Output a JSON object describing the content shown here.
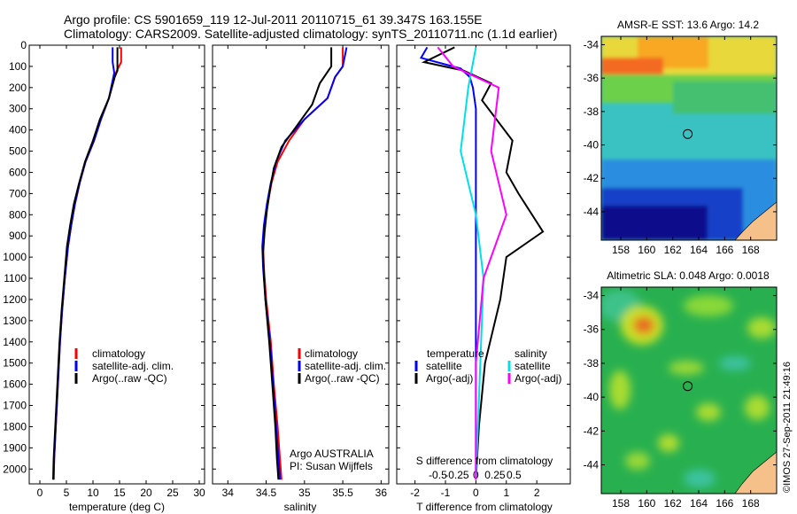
{
  "header": {
    "line1": "Argo profile: CS 5901659_119 12-Jul-2011 20110715_61 39.347S 163.155E",
    "line2": "Climatology: CARS2009. Satellite-adjusted climatology: synTS_20110711.nc (1.1d earlier)"
  },
  "colors": {
    "climatology": "#ff0000",
    "satellite": "#0000ff",
    "argo": "#000000",
    "sal_satellite": "#00e0e8",
    "sal_argo": "#ff00ff",
    "land": "#f5c08a"
  },
  "depth_ticks": [
    "0",
    "100",
    "200",
    "300",
    "400",
    "500",
    "600",
    "700",
    "800",
    "900",
    "1000",
    "1100",
    "1200",
    "1300",
    "1400",
    "1500",
    "1600",
    "1700",
    "1800",
    "1900",
    "2000"
  ],
  "chart_data": [
    {
      "type": "line",
      "xlabel": "temperature (deg C)",
      "xlim": [
        -2,
        31
      ],
      "ylim": [
        2070,
        0
      ],
      "xticks": [
        0,
        5,
        10,
        15,
        20,
        25,
        30
      ],
      "legend": [
        "climatology",
        "satellite-adj. clim.",
        "Argo(..raw -QC)"
      ],
      "legend_colors": [
        "#ff0000",
        "#0000ff",
        "#000000"
      ],
      "series": [
        {
          "name": "climatology",
          "color": "#ff0000",
          "points": [
            [
              15.3,
              10
            ],
            [
              15.3,
              80
            ],
            [
              14.5,
              120
            ],
            [
              14,
              150
            ],
            [
              13,
              250
            ],
            [
              11.5,
              350
            ],
            [
              10.2,
              450
            ],
            [
              8.6,
              550
            ],
            [
              7.5,
              650
            ],
            [
              6.6,
              750
            ],
            [
              5.9,
              850
            ],
            [
              5.3,
              950
            ],
            [
              4.7,
              1100
            ],
            [
              4.2,
              1250
            ],
            [
              3.8,
              1400
            ],
            [
              3.4,
              1600
            ],
            [
              3.0,
              1800
            ],
            [
              2.7,
              1950
            ],
            [
              2.6,
              2050
            ]
          ]
        },
        {
          "name": "satellite-adj. clim.",
          "color": "#0000ff",
          "points": [
            [
              13.7,
              10
            ],
            [
              13.7,
              80
            ],
            [
              14,
              130
            ],
            [
              13,
              250
            ],
            [
              11.5,
              350
            ],
            [
              10.2,
              450
            ],
            [
              8.6,
              550
            ],
            [
              7.5,
              650
            ],
            [
              6.6,
              750
            ],
            [
              5.9,
              850
            ],
            [
              5.3,
              950
            ],
            [
              4.7,
              1100
            ],
            [
              4.2,
              1250
            ],
            [
              3.8,
              1400
            ],
            [
              3.4,
              1600
            ],
            [
              3.0,
              1800
            ],
            [
              2.7,
              1950
            ],
            [
              2.6,
              2050
            ]
          ]
        },
        {
          "name": "Argo(..raw -QC)",
          "color": "#000000",
          "points": [
            [
              14.6,
              10
            ],
            [
              14.6,
              120
            ],
            [
              14.1,
              150
            ],
            [
              13,
              250
            ],
            [
              11.3,
              350
            ],
            [
              10,
              450
            ],
            [
              8.5,
              550
            ],
            [
              7.4,
              650
            ],
            [
              6.4,
              750
            ],
            [
              5.7,
              850
            ],
            [
              5.1,
              950
            ],
            [
              4.6,
              1100
            ],
            [
              4.1,
              1250
            ],
            [
              3.7,
              1400
            ],
            [
              3.3,
              1600
            ],
            [
              2.9,
              1800
            ],
            [
              2.6,
              1950
            ],
            [
              2.5,
              2050
            ]
          ]
        }
      ]
    },
    {
      "type": "line",
      "xlabel": "salinity",
      "xlim": [
        33.8,
        36.1
      ],
      "ylim": [
        2070,
        0
      ],
      "xticks": [
        34,
        34.5,
        35,
        35.5,
        36
      ],
      "xticklabels": [
        "34",
        "34.5",
        "35",
        "35.5",
        "36"
      ],
      "legend": [
        "climatology",
        "satellite-adj. clim.",
        "Argo(..raw -QC)"
      ],
      "legend_colors": [
        "#ff0000",
        "#0000ff",
        "#000000"
      ],
      "annotation": [
        "Argo AUSTRALIA",
        "PI: Susan Wijffels"
      ],
      "series": [
        {
          "name": "climatology",
          "color": "#ff0000",
          "points": [
            [
              35.5,
              10
            ],
            [
              35.5,
              100
            ],
            [
              35.4,
              150
            ],
            [
              35.3,
              250
            ],
            [
              35.0,
              350
            ],
            [
              34.8,
              450
            ],
            [
              34.65,
              550
            ],
            [
              34.57,
              650
            ],
            [
              34.52,
              750
            ],
            [
              34.48,
              850
            ],
            [
              34.46,
              950
            ],
            [
              34.47,
              1050
            ],
            [
              34.5,
              1200
            ],
            [
              34.56,
              1400
            ],
            [
              34.6,
              1600
            ],
            [
              34.65,
              1800
            ],
            [
              34.68,
              1950
            ],
            [
              34.7,
              2050
            ]
          ]
        },
        {
          "name": "satellite-adj. clim.",
          "color": "#0000ff",
          "points": [
            [
              35.55,
              10
            ],
            [
              35.5,
              100
            ],
            [
              35.4,
              150
            ],
            [
              35.3,
              250
            ],
            [
              35.0,
              350
            ],
            [
              34.75,
              450
            ],
            [
              34.63,
              550
            ],
            [
              34.56,
              650
            ],
            [
              34.51,
              750
            ],
            [
              34.47,
              850
            ],
            [
              34.45,
              950
            ],
            [
              34.46,
              1050
            ],
            [
              34.49,
              1200
            ],
            [
              34.55,
              1400
            ],
            [
              34.59,
              1600
            ],
            [
              34.63,
              1800
            ],
            [
              34.66,
              1950
            ],
            [
              34.68,
              2050
            ]
          ]
        },
        {
          "name": "Argo(..raw -QC)",
          "color": "#000000",
          "points": [
            [
              35.35,
              10
            ],
            [
              35.35,
              100
            ],
            [
              35.2,
              180
            ],
            [
              35.1,
              280
            ],
            [
              34.9,
              380
            ],
            [
              34.7,
              480
            ],
            [
              34.6,
              580
            ],
            [
              34.55,
              680
            ],
            [
              34.51,
              780
            ],
            [
              34.48,
              880
            ],
            [
              34.46,
              980
            ],
            [
              34.47,
              1080
            ],
            [
              34.49,
              1200
            ],
            [
              34.54,
              1400
            ],
            [
              34.58,
              1600
            ],
            [
              34.62,
              1800
            ],
            [
              34.64,
              1950
            ],
            [
              34.66,
              2050
            ]
          ]
        }
      ]
    },
    {
      "type": "line",
      "xlabel": "T difference from climatology",
      "xlabel2": "S difference from climatology",
      "xlim": [
        -2.6,
        3.1
      ],
      "ylim": [
        2070,
        0
      ],
      "xticks": [
        -2,
        -1,
        0,
        1,
        2
      ],
      "top_ticks": [
        -0.5,
        -0.25,
        0,
        0.25,
        0.5
      ],
      "top_ticklabels": [
        "-0.5",
        "-0.25",
        "0",
        "0.25",
        "0.5"
      ],
      "legend_headers": [
        "temperature",
        "salinity"
      ],
      "legend_left": [
        "satellite",
        "Argo(-adj)"
      ],
      "legend_left_colors": [
        "#0000ff",
        "#000000"
      ],
      "legend_right": [
        "satellite",
        "Argo(-adj)"
      ],
      "legend_right_colors": [
        "#00e0e8",
        "#ff00ff"
      ],
      "series": [
        {
          "name": "satellite",
          "group": "temperature",
          "color": "#0000ff",
          "points": [
            [
              -1.6,
              10
            ],
            [
              -1.8,
              60
            ],
            [
              -0.5,
              110
            ],
            [
              -0.2,
              150
            ],
            [
              -0.1,
              200
            ],
            [
              0,
              300
            ],
            [
              0,
              2050
            ]
          ]
        },
        {
          "name": "Argo(-adj)",
          "group": "temperature",
          "color": "#000000",
          "points": [
            [
              -0.7,
              10
            ],
            [
              -1.7,
              80
            ],
            [
              -0.4,
              120
            ],
            [
              0.5,
              180
            ],
            [
              0.2,
              260
            ],
            [
              1.2,
              450
            ],
            [
              1.0,
              600
            ],
            [
              1.4,
              700
            ],
            [
              2.2,
              880
            ],
            [
              1.0,
              1000
            ],
            [
              0.8,
              1200
            ],
            [
              0.3,
              1500
            ],
            [
              0.1,
              1800
            ],
            [
              0,
              2050
            ]
          ]
        },
        {
          "name": "satellite",
          "group": "salinity",
          "color": "#00e0e8",
          "points": [
            [
              0,
              10
            ],
            [
              -0.1,
              200
            ],
            [
              -0.2,
              500
            ],
            [
              0,
              800
            ],
            [
              0.1,
              1100
            ],
            [
              0,
              2050
            ]
          ]
        },
        {
          "name": "Argo(-adj)",
          "group": "salinity",
          "color": "#ff00ff",
          "points": [
            [
              -0.5,
              10
            ],
            [
              -0.3,
              100
            ],
            [
              0.3,
              200
            ],
            [
              0.2,
              500
            ],
            [
              0.4,
              800
            ],
            [
              0.1,
              1100
            ],
            [
              0,
              1500
            ],
            [
              0,
              2050
            ]
          ]
        }
      ]
    },
    {
      "type": "heatmap",
      "title": "AMSR-E SST: 13.6 Argo: 14.2",
      "xticks": [
        "158",
        "160",
        "162",
        "164",
        "166",
        "168"
      ],
      "yticks": [
        "-34",
        "-36",
        "-38",
        "-40",
        "-42",
        "-44"
      ],
      "xlim": [
        156.5,
        170
      ],
      "ylim": [
        -45.7,
        -33.5
      ],
      "marker": [
        163.155,
        -39.347
      ]
    },
    {
      "type": "heatmap",
      "title": "Altimetric SLA: 0.048 Argo: 0.0018",
      "xticks": [
        "158",
        "160",
        "162",
        "164",
        "166",
        "168"
      ],
      "yticks": [
        "-34",
        "-36",
        "-38",
        "-40",
        "-42",
        "-44"
      ],
      "xlim": [
        156.5,
        170
      ],
      "ylim": [
        -45.7,
        -33.5
      ],
      "marker": [
        163.155,
        -39.347
      ]
    }
  ],
  "credit": "©IMOS 27-Sep-2011 21:49:16"
}
